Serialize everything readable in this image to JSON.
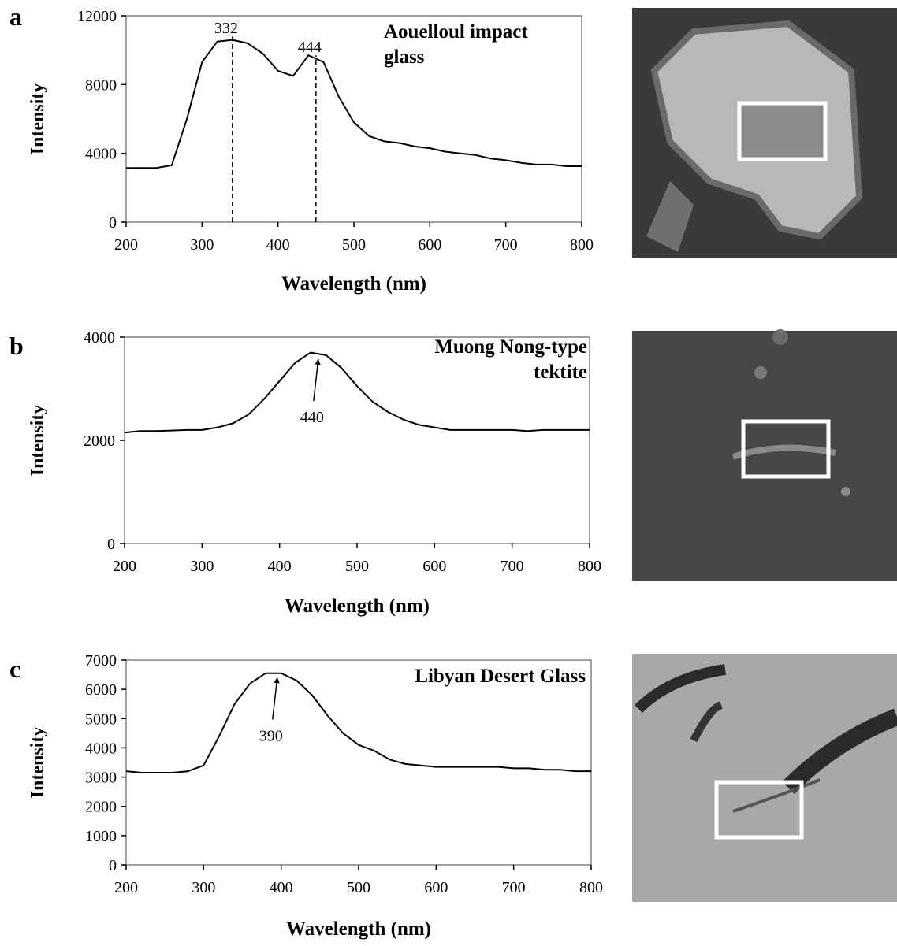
{
  "chart_data": [
    {
      "type": "line",
      "panel": "a",
      "title": [
        "Aouelloul impact",
        "glass"
      ],
      "xlabel": "Wavelength (nm)",
      "ylabel": "Intensity",
      "x": [
        200,
        220,
        240,
        260,
        280,
        300,
        320,
        340,
        360,
        380,
        400,
        420,
        440,
        460,
        480,
        500,
        520,
        540,
        560,
        580,
        600,
        620,
        640,
        660,
        680,
        700,
        720,
        740,
        760,
        780,
        800
      ],
      "series": [
        {
          "color": "#000000",
          "values": [
            3150,
            3150,
            3150,
            3300,
            6000,
            9300,
            10500,
            10600,
            10400,
            9800,
            8800,
            8500,
            9700,
            9300,
            7300,
            5800,
            5000,
            4700,
            4600,
            4400,
            4300,
            4100,
            4000,
            3900,
            3700,
            3600,
            3450,
            3350,
            3350,
            3250,
            3250
          ]
        }
      ],
      "xlim": [
        200,
        800
      ],
      "xticks": [
        200,
        300,
        400,
        500,
        600,
        700,
        800
      ],
      "ylim": [
        0,
        12000
      ],
      "yticks": [
        0,
        4000,
        8000,
        12000
      ],
      "annotations": [
        {
          "label": "332",
          "x": 340,
          "y": 10800,
          "style": "dashed"
        },
        {
          "label": "444",
          "x": 450,
          "y": 9700,
          "style": "dashed"
        }
      ]
    },
    {
      "type": "line",
      "panel": "b",
      "title": [
        "Muong Nong-type",
        "tektite"
      ],
      "xlabel": "Wavelength (nm)",
      "ylabel": "Intensity",
      "x": [
        200,
        220,
        240,
        260,
        280,
        300,
        320,
        340,
        360,
        380,
        400,
        420,
        440,
        460,
        480,
        500,
        520,
        540,
        560,
        580,
        600,
        620,
        640,
        660,
        680,
        700,
        720,
        740,
        760,
        780,
        800
      ],
      "series": [
        {
          "color": "#000000",
          "values": [
            2150,
            2180,
            2180,
            2190,
            2200,
            2200,
            2250,
            2330,
            2500,
            2800,
            3150,
            3500,
            3700,
            3650,
            3400,
            3050,
            2750,
            2550,
            2400,
            2300,
            2250,
            2200,
            2200,
            2200,
            2200,
            2200,
            2180,
            2200,
            2200,
            2200,
            2200
          ]
        }
      ],
      "xlim": [
        200,
        800
      ],
      "xticks": [
        200,
        300,
        400,
        500,
        600,
        700,
        800
      ],
      "ylim": [
        0,
        4000
      ],
      "yticks": [
        0,
        2000,
        4000
      ],
      "annotations": [
        {
          "label": "440",
          "x": 450,
          "y": 3600,
          "style": "arrow"
        }
      ]
    },
    {
      "type": "line",
      "panel": "c",
      "title": [
        "Libyan Desert Glass"
      ],
      "xlabel": "Wavelength (nm)",
      "ylabel": "Intensity",
      "x": [
        200,
        220,
        240,
        260,
        280,
        300,
        320,
        340,
        360,
        380,
        400,
        420,
        440,
        460,
        480,
        500,
        520,
        540,
        560,
        580,
        600,
        620,
        640,
        660,
        680,
        700,
        720,
        740,
        760,
        780,
        800
      ],
      "series": [
        {
          "color": "#000000",
          "values": [
            3200,
            3150,
            3150,
            3150,
            3200,
            3400,
            4400,
            5500,
            6200,
            6550,
            6550,
            6300,
            5800,
            5100,
            4500,
            4100,
            3900,
            3600,
            3450,
            3400,
            3350,
            3350,
            3350,
            3350,
            3350,
            3300,
            3300,
            3250,
            3250,
            3200,
            3200
          ]
        }
      ],
      "xlim": [
        200,
        800
      ],
      "xticks": [
        200,
        300,
        400,
        500,
        600,
        700,
        800
      ],
      "ylim": [
        0,
        7000
      ],
      "yticks": [
        0,
        1000,
        2000,
        3000,
        4000,
        5000,
        6000,
        7000
      ],
      "annotations": [
        {
          "label": "390",
          "x": 395,
          "y": 6450,
          "style": "arrow"
        }
      ]
    }
  ]
}
